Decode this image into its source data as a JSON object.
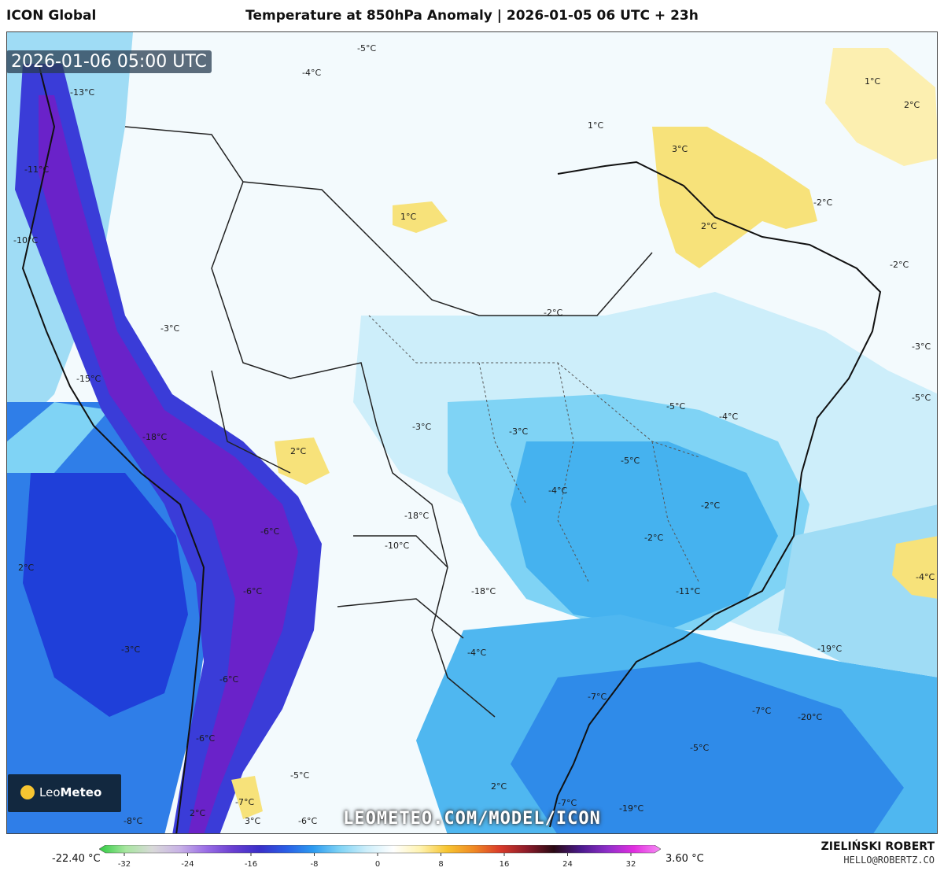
{
  "header": {
    "model_name": "ICON Global",
    "title": "Temperature at 850hPa Anomaly | 2026-01-05 06 UTC + 23h"
  },
  "map": {
    "valid_time": "2026-01-06 05:00 UTC",
    "watermark": "LEOMETEO.COM/MODEL/ICON",
    "logo_text_light": "Leo",
    "logo_text_bold": "Meteo",
    "labels": [
      {
        "id": "lbl-1",
        "text": "-5°C"
      },
      {
        "id": "lbl-2",
        "text": "-4°C"
      },
      {
        "id": "lbl-3",
        "text": "-13°C"
      },
      {
        "id": "lbl-4",
        "text": "-11°C"
      },
      {
        "id": "lbl-5",
        "text": "-10°C"
      },
      {
        "id": "lbl-6",
        "text": "1°C"
      },
      {
        "id": "lbl-7",
        "text": "2°C"
      },
      {
        "id": "lbl-8",
        "text": "1°C"
      },
      {
        "id": "lbl-9",
        "text": "3°C"
      },
      {
        "id": "lbl-10",
        "text": "1°C"
      },
      {
        "id": "lbl-11",
        "text": "-2°C"
      },
      {
        "id": "lbl-12",
        "text": "2°C"
      },
      {
        "id": "lbl-13",
        "text": "-2°C"
      },
      {
        "id": "lbl-14",
        "text": "-2°C"
      },
      {
        "id": "lbl-15",
        "text": "-3°C"
      },
      {
        "id": "lbl-16",
        "text": "-15°C"
      },
      {
        "id": "lbl-17",
        "text": "-3°C"
      },
      {
        "id": "lbl-18",
        "text": "-18°C"
      },
      {
        "id": "lbl-19",
        "text": "-3°C"
      },
      {
        "id": "lbl-20",
        "text": "-3°C"
      },
      {
        "id": "lbl-21",
        "text": "-5°C"
      },
      {
        "id": "lbl-22",
        "text": "-4°C"
      },
      {
        "id": "lbl-23",
        "text": "2°C"
      },
      {
        "id": "lbl-24",
        "text": "-5°C"
      },
      {
        "id": "lbl-25",
        "text": "-4°C"
      },
      {
        "id": "lbl-26",
        "text": "-5°C"
      },
      {
        "id": "lbl-27",
        "text": "-2°C"
      },
      {
        "id": "lbl-28",
        "text": "-18°C"
      },
      {
        "id": "lbl-29",
        "text": "-6°C"
      },
      {
        "id": "lbl-30",
        "text": "-2°C"
      },
      {
        "id": "lbl-31",
        "text": "-10°C"
      },
      {
        "id": "lbl-32",
        "text": "2°C"
      },
      {
        "id": "lbl-33",
        "text": "-4°C"
      },
      {
        "id": "lbl-34",
        "text": "-18°C"
      },
      {
        "id": "lbl-35",
        "text": "-6°C"
      },
      {
        "id": "lbl-36",
        "text": "-11°C"
      },
      {
        "id": "lbl-37",
        "text": "-3°C"
      },
      {
        "id": "lbl-38",
        "text": "-4°C"
      },
      {
        "id": "lbl-39",
        "text": "-19°C"
      },
      {
        "id": "lbl-40",
        "text": "-6°C"
      },
      {
        "id": "lbl-41",
        "text": "-7°C"
      },
      {
        "id": "lbl-42",
        "text": "-7°C"
      },
      {
        "id": "lbl-43",
        "text": "-20°C"
      },
      {
        "id": "lbl-44",
        "text": "-6°C"
      },
      {
        "id": "lbl-45",
        "text": "-5°C"
      },
      {
        "id": "lbl-46",
        "text": "-5°C"
      },
      {
        "id": "lbl-47",
        "text": "2°C"
      },
      {
        "id": "lbl-48",
        "text": "-7°C"
      },
      {
        "id": "lbl-49",
        "text": "-7°C"
      },
      {
        "id": "lbl-50",
        "text": "-19°C"
      },
      {
        "id": "lbl-51",
        "text": "2°C"
      },
      {
        "id": "lbl-52",
        "text": "3°C"
      },
      {
        "id": "lbl-53",
        "text": "-6°C"
      },
      {
        "id": "lbl-54",
        "text": "-8°C"
      }
    ]
  },
  "colorbar": {
    "min_label": "-22.40 °C",
    "max_label": "3.60 °C",
    "ticks": [
      "-32",
      "-24",
      "-16",
      "-8",
      "0",
      "8",
      "16",
      "24",
      "32"
    ],
    "stops": [
      "#2ecc40",
      "#a8e6a0",
      "#d9d9d9",
      "#c9b3e6",
      "#9b6ee6",
      "#6a3fd1",
      "#3a2fc9",
      "#2a5ee6",
      "#2c9bf0",
      "#7fd3f5",
      "#cdeefa",
      "#ffffff",
      "#fff3b0",
      "#f7c531",
      "#f08a24",
      "#d93a2a",
      "#8c1c2a",
      "#2a0a14",
      "#4a1a8c",
      "#8e2ec9",
      "#e22ee0",
      "#f78cf5"
    ]
  },
  "footer": {
    "author": "ZIELIŃSKI ROBERT",
    "email": "HELLO@ROBERTZ.CO"
  },
  "colors": {
    "land_light": "#eaf6fc",
    "cold_light": "#bfe8f7",
    "cold_mid": "#5bc4f0",
    "cold_deep": "#2f7ee8",
    "cold_ocean": "#1f4fe0",
    "cold_strong": "#2f2fd6",
    "cold_extreme": "#6a22c9",
    "warm": "#f7e27a"
  }
}
